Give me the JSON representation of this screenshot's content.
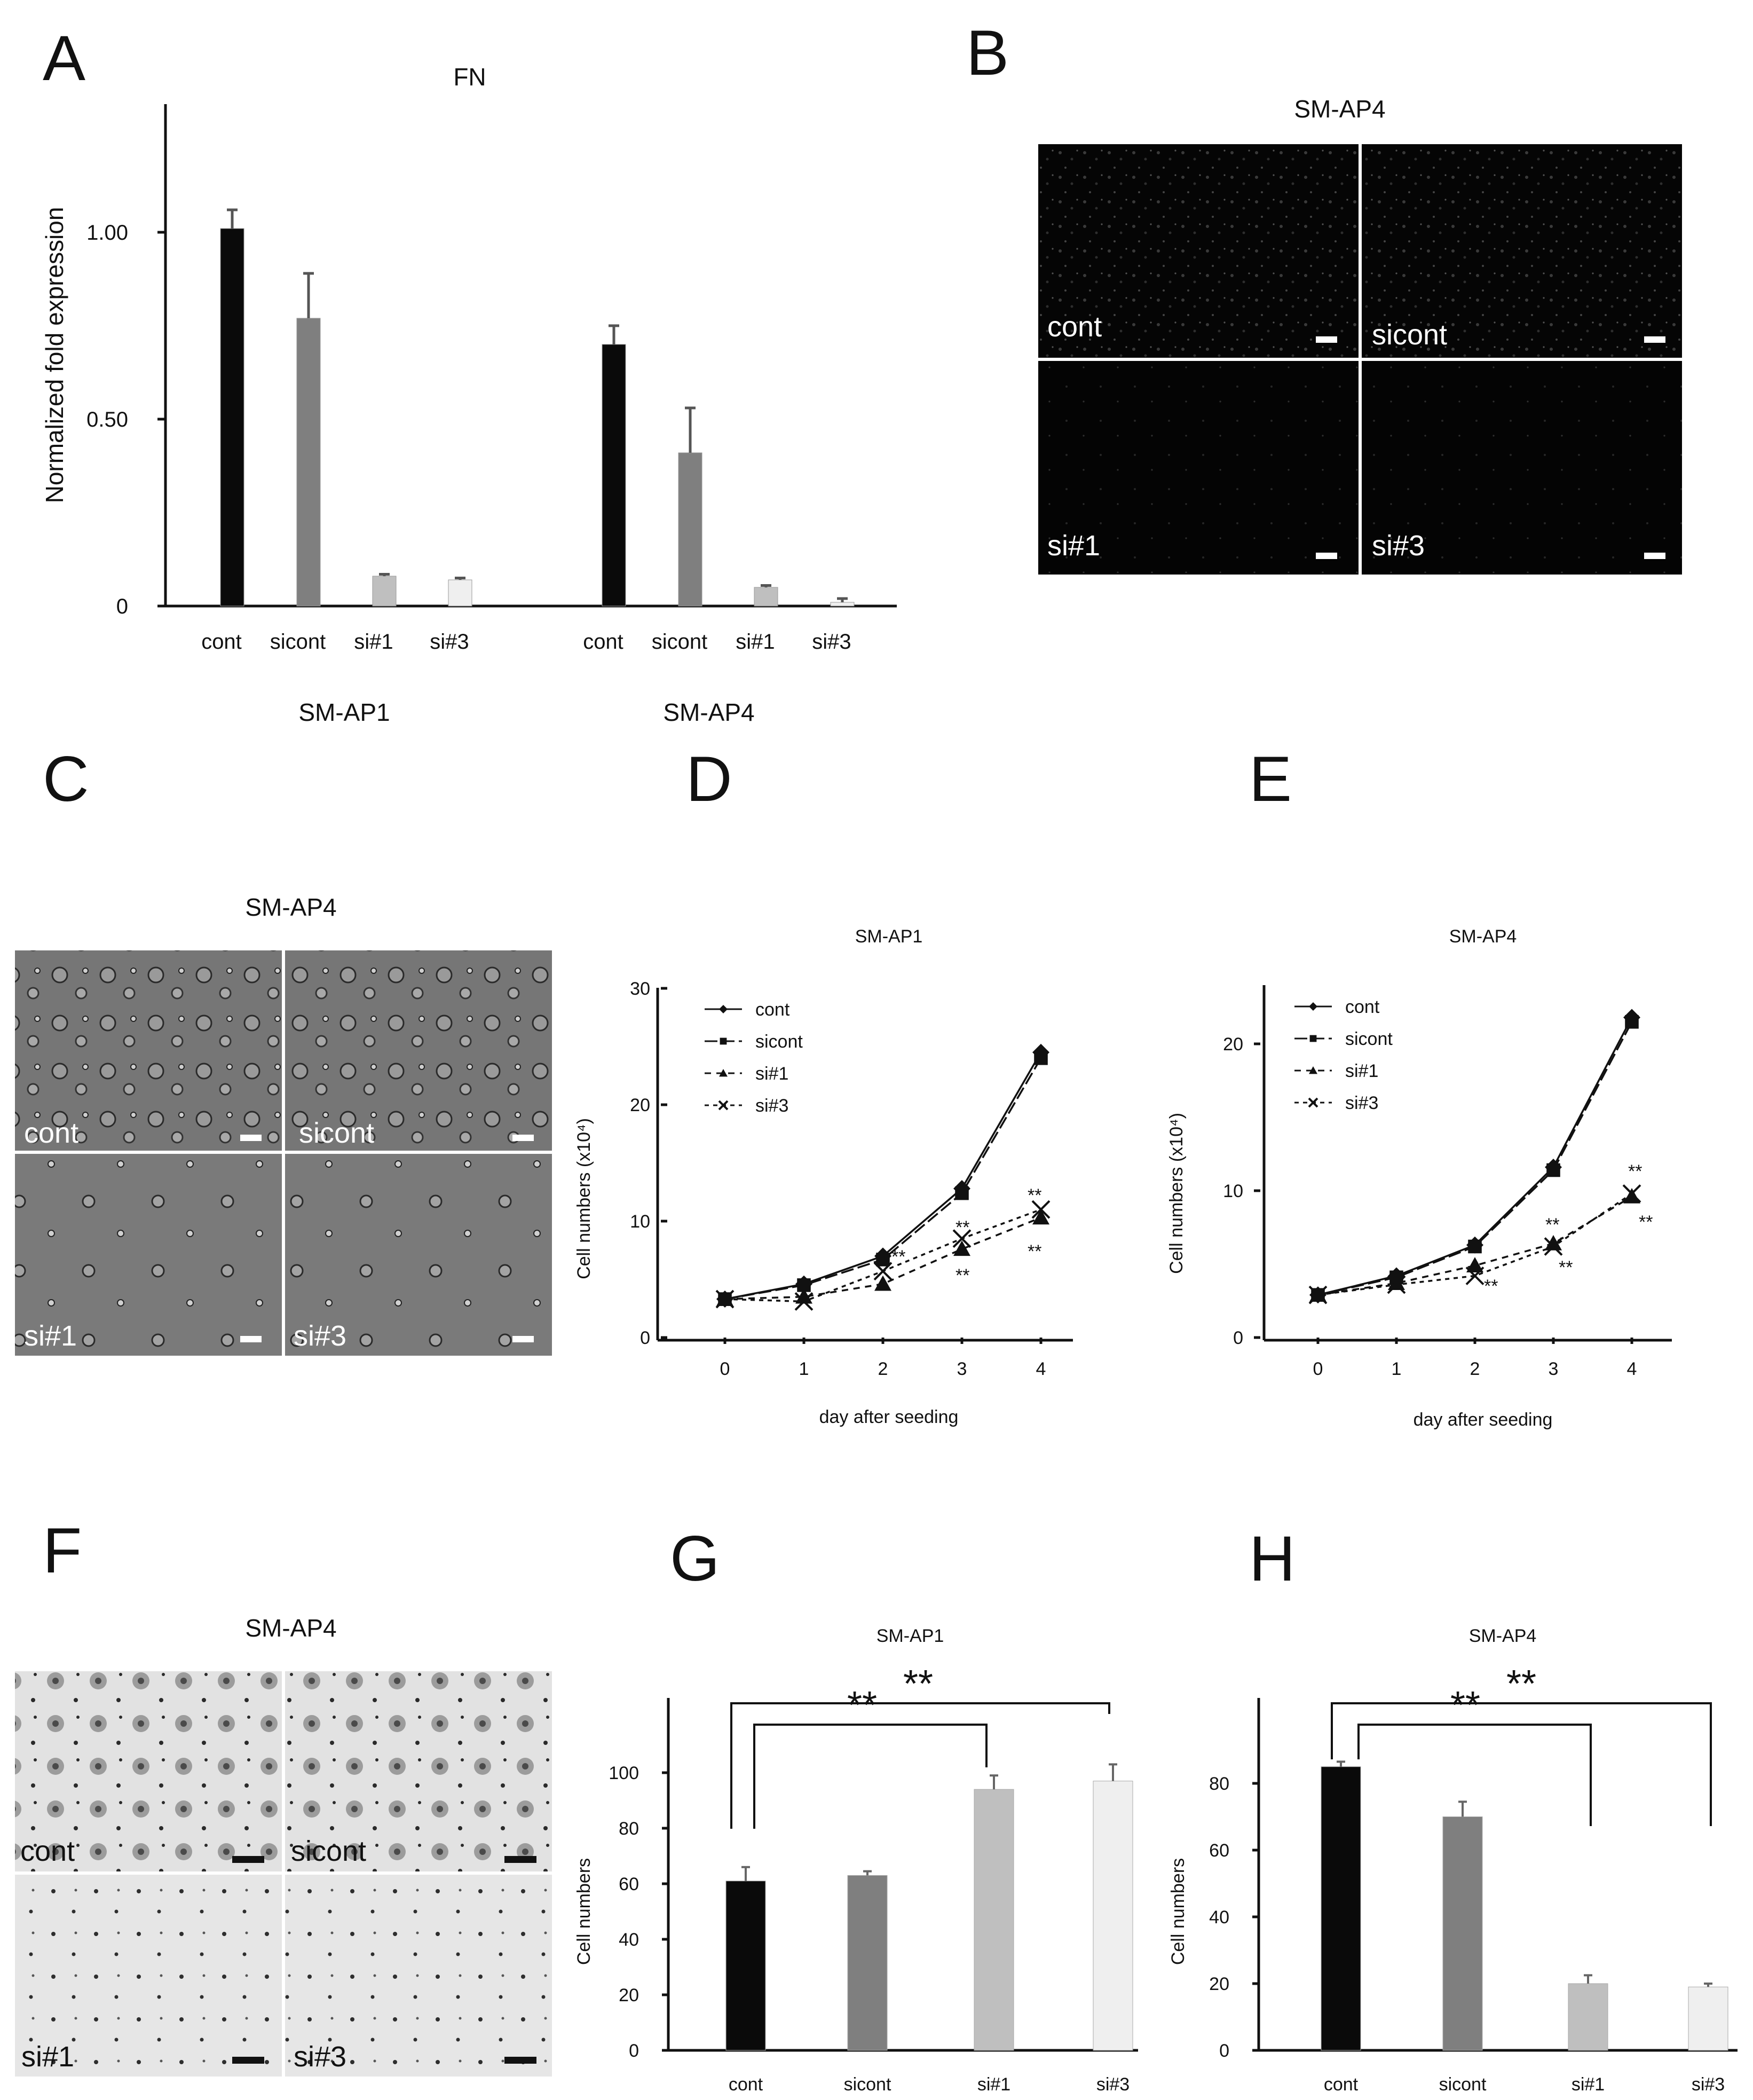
{
  "panel_letters": [
    "A",
    "B",
    "C",
    "D",
    "E",
    "F",
    "G",
    "H"
  ],
  "micrographs": {
    "B": {
      "title": "SM-AP4",
      "labels": [
        "cont",
        "sicont",
        "si#1",
        "si#3"
      ]
    },
    "C": {
      "title": "SM-AP4",
      "labels": [
        "cont",
        "sicont",
        "si#1",
        "si#3"
      ]
    },
    "F": {
      "title": "SM-AP4",
      "labels": [
        "cont",
        "sicont",
        "si#1",
        "si#3"
      ]
    }
  },
  "colors": {
    "cont": "#0a0a0a",
    "sicont": "#7f7f7f",
    "si1": "#bfbfbf",
    "si3": "#efefef"
  },
  "chart_data": [
    {
      "panel": "A",
      "type": "bar",
      "title": "FN",
      "ylabel": "Normalized fold expression",
      "ylim": [
        0,
        1.3
      ],
      "yticks": [
        0,
        0.5,
        1.0
      ],
      "ytick_labels": [
        "0",
        "0.50",
        "1.00"
      ],
      "groups": [
        "SM-AP1",
        "SM-AP4"
      ],
      "categories": [
        "cont",
        "sicont",
        "si#1",
        "si#3"
      ],
      "series": [
        {
          "group": "SM-AP1",
          "values": [
            1.01,
            0.77,
            0.08,
            0.07
          ],
          "errors": [
            0.05,
            0.12,
            0.005,
            0.005
          ]
        },
        {
          "group": "SM-AP4",
          "values": [
            0.7,
            0.41,
            0.05,
            0.01
          ],
          "errors": [
            0.05,
            0.12,
            0.005,
            0.01
          ]
        }
      ]
    },
    {
      "panel": "D",
      "type": "line",
      "title": "SM-AP1",
      "xlabel": "day after seeding",
      "ylabel": "Cell numbers (x10⁴)",
      "x": [
        0,
        1,
        2,
        3,
        4
      ],
      "ylim": [
        0,
        30
      ],
      "yticks": [
        0,
        10,
        20,
        30
      ],
      "series": [
        {
          "name": "cont",
          "values": [
            3.3,
            4.6,
            7.0,
            12.8,
            24.5
          ]
        },
        {
          "name": "sicont",
          "values": [
            3.3,
            4.5,
            6.7,
            12.4,
            24.0
          ]
        },
        {
          "name": "si#1",
          "values": [
            3.3,
            3.5,
            4.6,
            7.6,
            10.3
          ]
        },
        {
          "name": "si#3",
          "values": [
            3.3,
            3.1,
            5.7,
            8.5,
            11.0
          ]
        }
      ],
      "annotations": [
        "**",
        "**",
        "**",
        "**",
        "**"
      ]
    },
    {
      "panel": "E",
      "type": "line",
      "title": "SM-AP4",
      "xlabel": "day after seeding",
      "ylabel": "Cell numbers (x10⁴)",
      "x": [
        0,
        1,
        2,
        3,
        4
      ],
      "ylim": [
        0,
        23
      ],
      "yticks": [
        0,
        10,
        20
      ],
      "series": [
        {
          "name": "cont",
          "values": [
            2.9,
            4.2,
            6.3,
            11.6,
            21.8
          ]
        },
        {
          "name": "sicont",
          "values": [
            2.9,
            4.1,
            6.2,
            11.4,
            21.5
          ]
        },
        {
          "name": "si#1",
          "values": [
            2.9,
            3.7,
            4.9,
            6.4,
            9.6
          ]
        },
        {
          "name": "si#3",
          "values": [
            2.9,
            3.6,
            4.2,
            6.2,
            9.8
          ]
        }
      ],
      "annotations": [
        "**",
        "**",
        "**",
        "**",
        "**"
      ]
    },
    {
      "panel": "G",
      "type": "bar",
      "title": "SM-AP1",
      "ylabel": "Cell numbers",
      "categories": [
        "cont",
        "sicont",
        "si#1",
        "si#3"
      ],
      "values": [
        61,
        63,
        94,
        97
      ],
      "errors": [
        5,
        1.5,
        5,
        6
      ],
      "ylim": [
        0,
        125
      ],
      "yticks": [
        0,
        20,
        40,
        60,
        80,
        100
      ],
      "significance": [
        "**",
        "**"
      ]
    },
    {
      "panel": "H",
      "type": "bar",
      "title": "SM-AP4",
      "ylabel": "Cell numbers",
      "categories": [
        "cont",
        "sicont",
        "si#1",
        "si#3"
      ],
      "values": [
        85,
        70,
        20,
        19
      ],
      "errors": [
        1.5,
        4.5,
        2.5,
        1
      ],
      "ylim": [
        0,
        106
      ],
      "yticks": [
        0,
        20,
        40,
        60,
        80
      ],
      "significance": [
        "**",
        "**"
      ]
    }
  ]
}
